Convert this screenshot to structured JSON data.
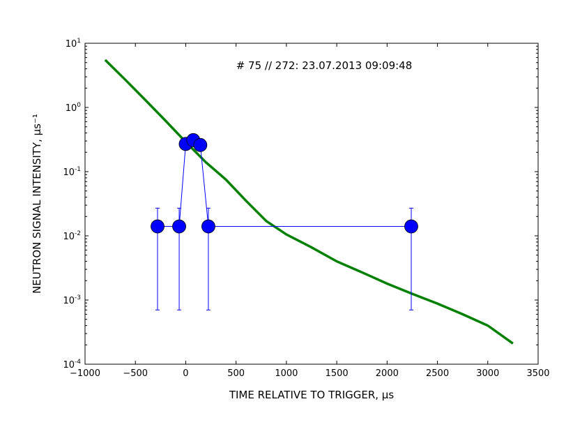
{
  "chart_data": {
    "type": "line",
    "xlabel": "TIME RELATIVE TO TRIGGER, μs",
    "ylabel": "NEUTRON SIGNAL INTENSITY, μs⁻¹",
    "annotation": "# 75 // 272: 23.07.2013 09:09:48",
    "xlim": [
      -1000,
      3500
    ],
    "ylim": [
      0.0001,
      10
    ],
    "yscale": "log",
    "grid": false,
    "xticks": [
      -1000,
      -500,
      0,
      500,
      1000,
      1500,
      2000,
      2500,
      3000,
      3500
    ],
    "xtick_labels": [
      "−1000",
      "−500",
      "0",
      "500",
      "1000",
      "1500",
      "2000",
      "2500",
      "3000",
      "3500"
    ],
    "yticks": [
      {
        "value": 0.0001,
        "mantissa": "10",
        "exponent": "-4"
      },
      {
        "value": 0.001,
        "mantissa": "10",
        "exponent": "-3"
      },
      {
        "value": 0.01,
        "mantissa": "10",
        "exponent": "-2"
      },
      {
        "value": 0.1,
        "mantissa": "10",
        "exponent": "-1"
      },
      {
        "value": 1,
        "mantissa": "10",
        "exponent": "0"
      },
      {
        "value": 10,
        "mantissa": "10",
        "exponent": "1"
      }
    ],
    "series": [
      {
        "type": "errorbar",
        "color": "#0000ff",
        "points": [
          {
            "x": -280,
            "y": 0.014,
            "ylow": 0.0007,
            "yhigh": 0.027
          },
          {
            "x": -65,
            "y": 0.014,
            "ylow": 0.0007,
            "yhigh": 0.027
          },
          {
            "x": 0,
            "y": 0.27
          },
          {
            "x": 75,
            "y": 0.31
          },
          {
            "x": 145,
            "y": 0.26
          },
          {
            "x": 225,
            "y": 0.014,
            "ylow": 0.0007,
            "yhigh": 0.027
          },
          {
            "x": 2240,
            "y": 0.014,
            "ylow": 0.0007,
            "yhigh": 0.027
          }
        ]
      },
      {
        "type": "line",
        "color": "#008000",
        "points": [
          {
            "x": -800,
            "y": 5.5
          },
          {
            "x": -600,
            "y": 2.7
          },
          {
            "x": -400,
            "y": 1.3
          },
          {
            "x": -200,
            "y": 0.62
          },
          {
            "x": 0,
            "y": 0.29
          },
          {
            "x": 200,
            "y": 0.14
          },
          {
            "x": 400,
            "y": 0.075
          },
          {
            "x": 600,
            "y": 0.035
          },
          {
            "x": 800,
            "y": 0.017
          },
          {
            "x": 1000,
            "y": 0.0105
          },
          {
            "x": 1250,
            "y": 0.0066
          },
          {
            "x": 1500,
            "y": 0.004
          },
          {
            "x": 1750,
            "y": 0.0027
          },
          {
            "x": 2000,
            "y": 0.0018
          },
          {
            "x": 2250,
            "y": 0.00125
          },
          {
            "x": 2500,
            "y": 0.00088
          },
          {
            "x": 2750,
            "y": 0.0006
          },
          {
            "x": 3000,
            "y": 0.0004
          },
          {
            "x": 3250,
            "y": 0.00021
          }
        ]
      }
    ]
  }
}
